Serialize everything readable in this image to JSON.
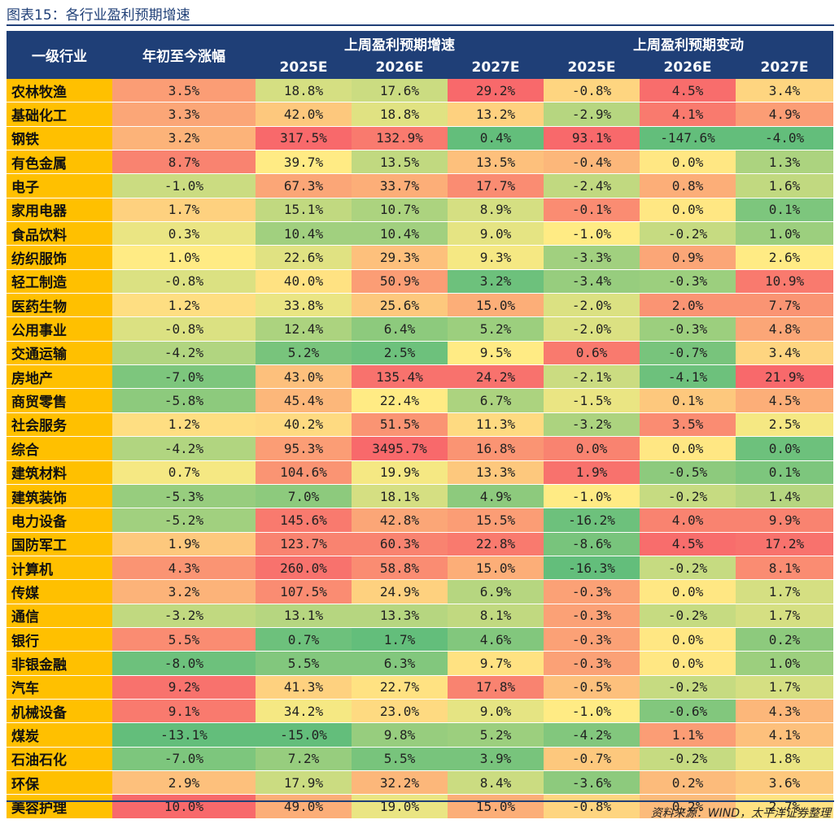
{
  "title": "图表15：各行业盈利预期增速",
  "header": {
    "industry": "一级行业",
    "ytd": "年初至今涨幅",
    "growth_group": "上周盈利预期增速",
    "change_group": "上周盈利预期变动",
    "years": [
      "2025E",
      "2026E",
      "2027E",
      "2025E",
      "2026E",
      "2027E"
    ]
  },
  "rows": [
    {
      "name": "农林牧渔",
      "ytd": "3.5%",
      "g25": "18.8%",
      "g26": "17.6%",
      "g27": "29.2%",
      "c25": "-0.8%",
      "c26": "4.5%",
      "c27": "3.4%"
    },
    {
      "name": "基础化工",
      "ytd": "3.3%",
      "g25": "42.0%",
      "g26": "18.8%",
      "g27": "13.2%",
      "c25": "-2.9%",
      "c26": "4.1%",
      "c27": "4.9%"
    },
    {
      "name": "钢铁",
      "ytd": "3.2%",
      "g25": "317.5%",
      "g26": "132.9%",
      "g27": "0.4%",
      "c25": "93.1%",
      "c26": "-147.6%",
      "c27": "-4.0%"
    },
    {
      "name": "有色金属",
      "ytd": "8.7%",
      "g25": "39.7%",
      "g26": "13.5%",
      "g27": "13.5%",
      "c25": "-0.4%",
      "c26": "0.0%",
      "c27": "1.3%"
    },
    {
      "name": "电子",
      "ytd": "-1.0%",
      "g25": "67.3%",
      "g26": "33.7%",
      "g27": "17.7%",
      "c25": "-2.4%",
      "c26": "0.8%",
      "c27": "1.6%"
    },
    {
      "name": "家用电器",
      "ytd": "1.7%",
      "g25": "15.1%",
      "g26": "10.7%",
      "g27": "8.9%",
      "c25": "-0.1%",
      "c26": "0.0%",
      "c27": "0.1%"
    },
    {
      "name": "食品饮料",
      "ytd": "0.3%",
      "g25": "10.4%",
      "g26": "10.4%",
      "g27": "9.0%",
      "c25": "-1.0%",
      "c26": "-0.2%",
      "c27": "1.0%"
    },
    {
      "name": "纺织服饰",
      "ytd": "1.0%",
      "g25": "22.6%",
      "g26": "29.3%",
      "g27": "9.3%",
      "c25": "-3.3%",
      "c26": "0.9%",
      "c27": "2.6%"
    },
    {
      "name": "轻工制造",
      "ytd": "-0.8%",
      "g25": "40.0%",
      "g26": "50.9%",
      "g27": "3.2%",
      "c25": "-3.4%",
      "c26": "-0.3%",
      "c27": "10.9%"
    },
    {
      "name": "医药生物",
      "ytd": "1.2%",
      "g25": "33.8%",
      "g26": "25.6%",
      "g27": "15.0%",
      "c25": "-2.0%",
      "c26": "2.0%",
      "c27": "7.7%"
    },
    {
      "name": "公用事业",
      "ytd": "-0.8%",
      "g25": "12.4%",
      "g26": "6.4%",
      "g27": "5.2%",
      "c25": "-2.0%",
      "c26": "-0.3%",
      "c27": "4.8%"
    },
    {
      "name": "交通运输",
      "ytd": "-4.2%",
      "g25": "5.2%",
      "g26": "2.5%",
      "g27": "9.5%",
      "c25": "0.6%",
      "c26": "-0.7%",
      "c27": "3.4%"
    },
    {
      "name": "房地产",
      "ytd": "-7.0%",
      "g25": "43.0%",
      "g26": "135.4%",
      "g27": "24.2%",
      "c25": "-2.1%",
      "c26": "-4.1%",
      "c27": "21.9%"
    },
    {
      "name": "商贸零售",
      "ytd": "-5.8%",
      "g25": "45.4%",
      "g26": "22.4%",
      "g27": "6.7%",
      "c25": "-1.5%",
      "c26": "0.1%",
      "c27": "4.5%"
    },
    {
      "name": "社会服务",
      "ytd": "1.2%",
      "g25": "40.2%",
      "g26": "51.5%",
      "g27": "11.3%",
      "c25": "-3.2%",
      "c26": "3.5%",
      "c27": "2.5%"
    },
    {
      "name": "综合",
      "ytd": "-4.2%",
      "g25": "95.3%",
      "g26": "3495.7%",
      "g27": "16.8%",
      "c25": "0.0%",
      "c26": "0.0%",
      "c27": "0.0%"
    },
    {
      "name": "建筑材料",
      "ytd": "0.7%",
      "g25": "104.6%",
      "g26": "19.9%",
      "g27": "13.3%",
      "c25": "1.9%",
      "c26": "-0.5%",
      "c27": "0.1%"
    },
    {
      "name": "建筑装饰",
      "ytd": "-5.3%",
      "g25": "7.0%",
      "g26": "18.1%",
      "g27": "4.9%",
      "c25": "-1.0%",
      "c26": "-0.2%",
      "c27": "1.4%"
    },
    {
      "name": "电力设备",
      "ytd": "-5.2%",
      "g25": "145.6%",
      "g26": "42.8%",
      "g27": "15.5%",
      "c25": "-16.2%",
      "c26": "4.0%",
      "c27": "9.9%"
    },
    {
      "name": "国防军工",
      "ytd": "1.9%",
      "g25": "123.7%",
      "g26": "60.3%",
      "g27": "22.8%",
      "c25": "-8.6%",
      "c26": "4.5%",
      "c27": "17.2%"
    },
    {
      "name": "计算机",
      "ytd": "4.3%",
      "g25": "260.0%",
      "g26": "58.8%",
      "g27": "15.0%",
      "c25": "-16.3%",
      "c26": "-0.2%",
      "c27": "8.1%"
    },
    {
      "name": "传媒",
      "ytd": "3.2%",
      "g25": "107.5%",
      "g26": "24.9%",
      "g27": "6.9%",
      "c25": "-0.3%",
      "c26": "0.0%",
      "c27": "1.7%"
    },
    {
      "name": "通信",
      "ytd": "-3.2%",
      "g25": "13.1%",
      "g26": "13.3%",
      "g27": "8.1%",
      "c25": "-0.3%",
      "c26": "-0.2%",
      "c27": "1.7%"
    },
    {
      "name": "银行",
      "ytd": "5.5%",
      "g25": "0.7%",
      "g26": "1.7%",
      "g27": "4.6%",
      "c25": "-0.3%",
      "c26": "0.0%",
      "c27": "0.2%"
    },
    {
      "name": "非银金融",
      "ytd": "-8.0%",
      "g25": "5.5%",
      "g26": "6.3%",
      "g27": "9.7%",
      "c25": "-0.3%",
      "c26": "0.0%",
      "c27": "1.0%"
    },
    {
      "name": "汽车",
      "ytd": "9.2%",
      "g25": "41.3%",
      "g26": "22.7%",
      "g27": "17.8%",
      "c25": "-0.5%",
      "c26": "-0.2%",
      "c27": "1.7%"
    },
    {
      "name": "机械设备",
      "ytd": "9.1%",
      "g25": "34.2%",
      "g26": "23.0%",
      "g27": "9.0%",
      "c25": "-1.0%",
      "c26": "-0.6%",
      "c27": "4.3%"
    },
    {
      "name": "煤炭",
      "ytd": "-13.1%",
      "g25": "-15.0%",
      "g26": "9.8%",
      "g27": "5.2%",
      "c25": "-4.2%",
      "c26": "1.1%",
      "c27": "4.1%"
    },
    {
      "name": "石油石化",
      "ytd": "-7.0%",
      "g25": "7.2%",
      "g26": "5.5%",
      "g27": "3.9%",
      "c25": "-0.7%",
      "c26": "-0.2%",
      "c27": "1.8%"
    },
    {
      "name": "环保",
      "ytd": "2.9%",
      "g25": "17.9%",
      "g26": "32.2%",
      "g27": "8.4%",
      "c25": "-3.6%",
      "c26": "0.2%",
      "c27": "3.6%"
    },
    {
      "name": "美容护理",
      "ytd": "10.0%",
      "g25": "49.0%",
      "g26": "19.0%",
      "g27": "15.0%",
      "c25": "-0.8%",
      "c26": "0.2%",
      "c27": "2.7%"
    }
  ],
  "source": "资料来源：WIND，太平洋证券整理"
}
